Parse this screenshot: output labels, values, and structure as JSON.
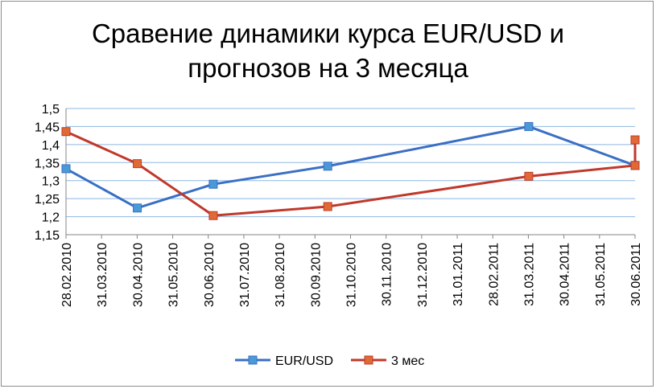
{
  "chart_data": {
    "type": "line",
    "title_line1": "Сравение динамики курса EUR/USD и",
    "title_line2": "прогнозов на 3 месяца",
    "xlabel": "",
    "ylabel": "",
    "ylim": [
      1.15,
      1.5
    ],
    "y_ticks": [
      "1,15",
      "1,2",
      "1,25",
      "1,3",
      "1,35",
      "1,4",
      "1,45",
      "1,5"
    ],
    "x_ticks": [
      "28.02.2010",
      "31.03.2010",
      "30.04.2010",
      "31.05.2010",
      "30.06.2010",
      "31.07.2010",
      "31.08.2010",
      "30.09.2010",
      "31.10.2010",
      "30.11.2010",
      "31.12.2010",
      "31.01.2011",
      "28.02.2011",
      "31.03.2011",
      "30.04.2011",
      "31.05.2011",
      "30.06.2011"
    ],
    "grid": "horizontal",
    "legend_position": "bottom",
    "series": [
      {
        "name": "EUR/USD",
        "color": "#3a6fc4",
        "marker_color": "#4a9ad8",
        "points": [
          {
            "x": "2010-02-28",
            "y": 1.333
          },
          {
            "x": "2010-04-30",
            "y": 1.224
          },
          {
            "x": "2010-07-04",
            "y": 1.29
          },
          {
            "x": "2010-10-10",
            "y": 1.34
          },
          {
            "x": "2011-03-31",
            "y": 1.45
          },
          {
            "x": "2011-06-30",
            "y": 1.342
          }
        ]
      },
      {
        "name": "3 мес",
        "color": "#c0392b",
        "marker_color": "#e06a35",
        "points": [
          {
            "x": "2010-02-28",
            "y": 1.436
          },
          {
            "x": "2010-04-30",
            "y": 1.347
          },
          {
            "x": "2010-07-04",
            "y": 1.203
          },
          {
            "x": "2010-10-10",
            "y": 1.228
          },
          {
            "x": "2011-03-31",
            "y": 1.312
          },
          {
            "x": "2011-06-30",
            "y": 1.342
          },
          {
            "x": "2011-06-30",
            "y": 1.413
          }
        ]
      }
    ]
  }
}
